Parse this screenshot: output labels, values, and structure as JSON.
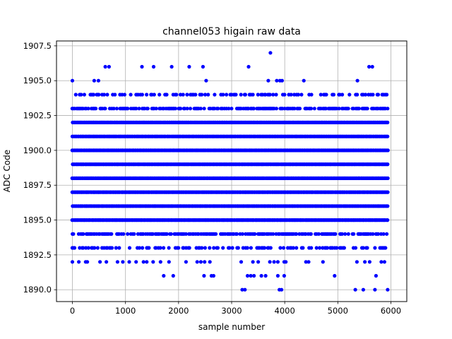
{
  "chart_data": {
    "type": "scatter",
    "title": "channel053 higain raw data",
    "xlabel": "sample number",
    "ylabel": "ADC Code",
    "xlim": [
      -300,
      6300
    ],
    "ylim": [
      1889.15,
      1907.85
    ],
    "xticks": [
      0,
      1000,
      2000,
      3000,
      4000,
      5000,
      6000
    ],
    "xtick_labels": [
      "0",
      "1000",
      "2000",
      "3000",
      "4000",
      "5000",
      "6000"
    ],
    "yticks": [
      1890.0,
      1892.5,
      1895.0,
      1897.5,
      1900.0,
      1902.5,
      1905.0,
      1907.5
    ],
    "ytick_labels": [
      "1890.0",
      "1892.5",
      "1895.0",
      "1897.5",
      "1900.0",
      "1902.5",
      "1905.0",
      "1907.5"
    ],
    "grid": true,
    "marker_color": "#0000ff",
    "sample_range": [
      0,
      5940
    ],
    "dense_levels": [
      1893,
      1894,
      1895,
      1896,
      1897,
      1898,
      1899,
      1900,
      1901,
      1902,
      1903,
      1904
    ],
    "sparse_levels": [
      {
        "y": 1892,
        "x": [
          0,
          120,
          250,
          280,
          520,
          640,
          850,
          950,
          1070,
          1200,
          1340,
          1400,
          1520,
          1660,
          1820,
          2140,
          2350,
          2420,
          2490,
          2590,
          3180,
          3400,
          3500,
          3720,
          3800,
          3870,
          3990,
          4020,
          4400,
          4450,
          4720,
          5360,
          5510,
          5600,
          5820,
          5880
        ]
      },
      {
        "y": 1891,
        "x": [
          1720,
          1900,
          2480,
          2620,
          2660,
          3300,
          3360,
          3420,
          3560,
          3640,
          3870,
          3990,
          4940,
          5720
        ]
      },
      {
        "y": 1890,
        "x": [
          3200,
          3250,
          3900,
          3940,
          5330,
          5480,
          5700,
          5940
        ]
      },
      {
        "y": 1905,
        "x": [
          0,
          410,
          490,
          2520,
          3690,
          3850,
          3910,
          3950,
          4360,
          5370
        ]
      },
      {
        "y": 1906,
        "x": [
          620,
          690,
          1310,
          1530,
          1870,
          2200,
          2460,
          3320,
          5590,
          5650
        ]
      },
      {
        "y": 1907,
        "x": [
          3730
        ]
      }
    ]
  }
}
